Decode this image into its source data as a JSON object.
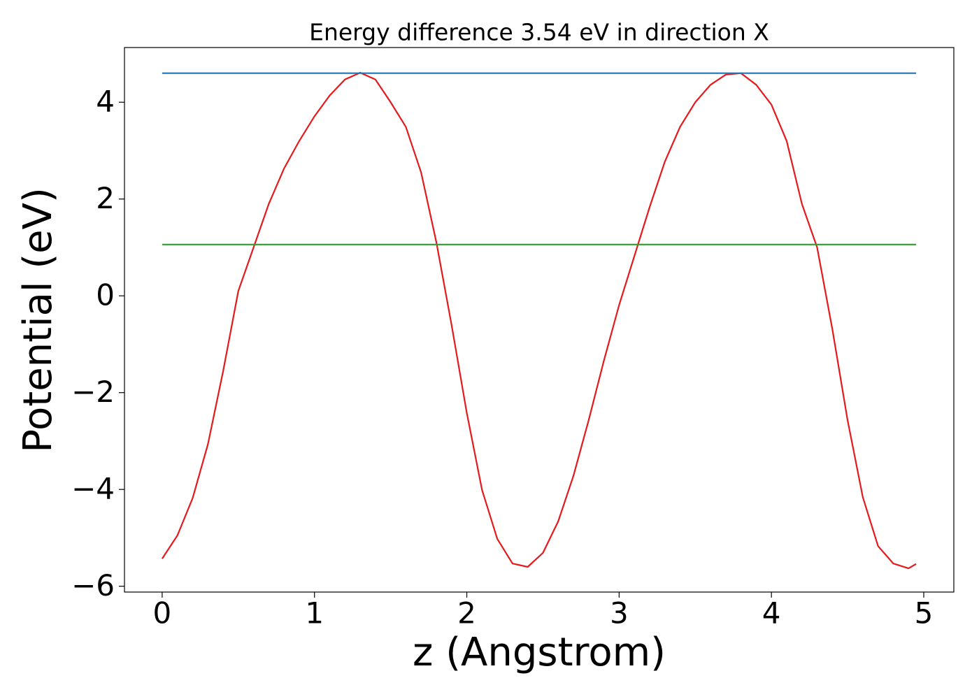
{
  "chart_data": {
    "type": "line",
    "title": "Energy difference 3.54 eV in direction X",
    "xlabel": "z (Angstrom)",
    "ylabel": "Potential (eV)",
    "series": [
      {
        "color": "#e41a1c",
        "x": [
          0,
          0.1,
          0.2,
          0.3,
          0.4,
          0.5,
          0.6,
          0.7,
          0.8,
          0.9,
          1.0,
          1.1,
          1.2,
          1.3,
          1.4,
          1.5,
          1.6,
          1.7,
          1.8,
          1.9,
          2.0,
          2.1,
          2.2,
          2.3,
          2.4,
          2.5,
          2.6,
          2.7,
          2.8,
          2.9,
          3.0,
          3.1,
          3.2,
          3.3,
          3.4,
          3.5,
          3.6,
          3.7,
          3.8,
          3.9,
          4.0,
          4.1,
          4.2,
          4.3,
          4.4,
          4.5,
          4.6,
          4.7,
          4.8,
          4.9,
          4.95
        ],
        "values": [
          -5.43,
          -4.95,
          -4.18,
          -3.07,
          -1.56,
          0.1,
          1.0,
          1.9,
          2.63,
          3.2,
          3.71,
          4.14,
          4.47,
          4.61,
          4.47,
          4.0,
          3.49,
          2.55,
          1.11,
          -0.6,
          -2.42,
          -4.01,
          -5.02,
          -5.53,
          -5.6,
          -5.31,
          -4.66,
          -3.72,
          -2.57,
          -1.34,
          -0.19,
          0.82,
          1.83,
          2.77,
          3.49,
          4.0,
          4.36,
          4.57,
          4.6,
          4.36,
          3.95,
          3.2,
          1.9,
          1.0,
          -0.69,
          -2.57,
          -4.16,
          -5.17,
          -5.53,
          -5.63,
          -5.54
        ]
      },
      {
        "color": "#1f77b4",
        "x": [
          0,
          4.95
        ],
        "values": [
          4.6,
          4.6
        ]
      },
      {
        "color": "#2ca02c",
        "x": [
          0,
          4.95
        ],
        "values": [
          1.06,
          1.06
        ]
      }
    ],
    "xlim": [
      -0.2475,
      5.1975
    ],
    "ylim": [
      -6.12,
      5.13
    ],
    "xticks": [
      0,
      1,
      2,
      3,
      4,
      5
    ],
    "yticks": [
      {
        "value": -6,
        "label": "−6"
      },
      {
        "value": -4,
        "label": "−4"
      },
      {
        "value": -2,
        "label": "−2"
      },
      0,
      2,
      4
    ],
    "grid": false
  }
}
